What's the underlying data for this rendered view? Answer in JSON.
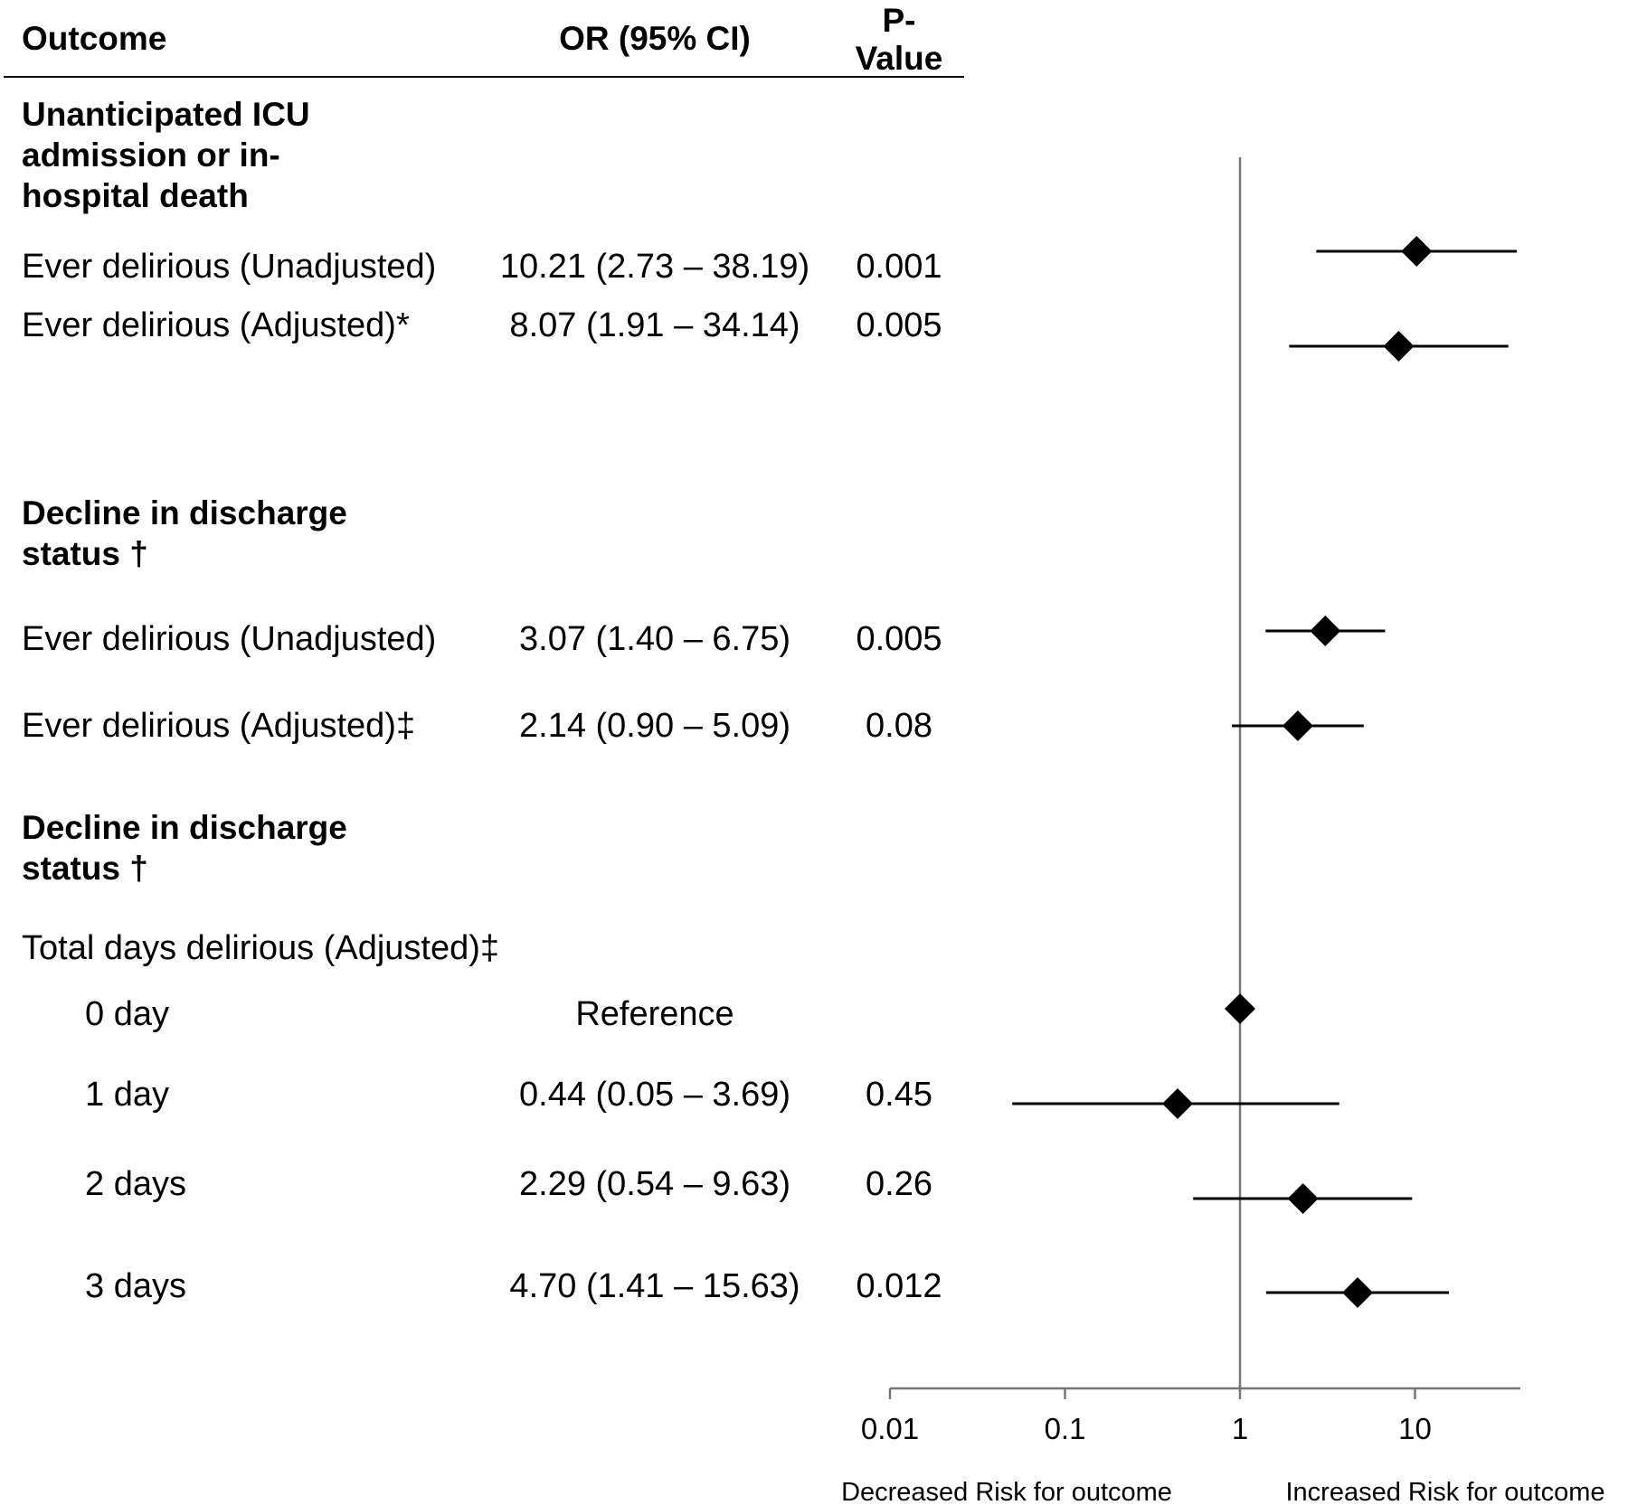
{
  "header": {
    "outcome": "Outcome",
    "or": "OR (95% CI)",
    "p_line1": "P-",
    "p_line2": "Value"
  },
  "groups": [
    {
      "title": "Unanticipated ICU admission or in-hospital death"
    },
    {
      "title": "Decline in discharge status †"
    },
    {
      "title": "Decline in discharge status †"
    }
  ],
  "subheading": "Total days delirious (Adjusted)‡",
  "rows": [
    {
      "label": "Ever delirious (Unadjusted)",
      "or_ci": "10.21 (2.73 – 38.19)",
      "p": "0.001"
    },
    {
      "label": "Ever delirious (Adjusted)*",
      "or_ci": "8.07 (1.91 – 34.14)",
      "p": "0.005"
    },
    {
      "label": "Ever delirious (Unadjusted)",
      "or_ci": "3.07 (1.40 – 6.75)",
      "p": "0.005"
    },
    {
      "label": "Ever delirious (Adjusted)‡",
      "or_ci": "2.14 (0.90 – 5.09)",
      "p": "0.08"
    },
    {
      "label": "0 day",
      "or_ci": "Reference",
      "p": ""
    },
    {
      "label": "1 day",
      "or_ci": "0.44 (0.05 – 3.69)",
      "p": "0.45"
    },
    {
      "label": "2 days",
      "or_ci": "2.29 (0.54 – 9.63)",
      "p": "0.26"
    },
    {
      "label": "3 days",
      "or_ci": "4.70 (1.41 – 15.63)",
      "p": "0.012"
    }
  ],
  "chart_data": {
    "type": "scatter",
    "x_scale": "log",
    "xlim": [
      0.01,
      40
    ],
    "reference_line": 1,
    "x_ticks": [
      "0.01",
      "0.1",
      "1",
      "10"
    ],
    "x_tick_values": [
      0.01,
      0.1,
      1,
      10
    ],
    "left_caption": "Decreased Risk for outcome",
    "right_caption": "Increased Risk for outcome",
    "points": [
      {
        "or": 10.21,
        "lo": 2.73,
        "hi": 38.19
      },
      {
        "or": 8.07,
        "lo": 1.91,
        "hi": 34.14
      },
      {
        "or": 3.07,
        "lo": 1.4,
        "hi": 6.75
      },
      {
        "or": 2.14,
        "lo": 0.9,
        "hi": 5.09
      },
      {
        "or": 1,
        "lo": 1,
        "hi": 1
      },
      {
        "or": 0.44,
        "lo": 0.05,
        "hi": 3.69
      },
      {
        "or": 2.29,
        "lo": 0.54,
        "hi": 9.63
      },
      {
        "or": 4.7,
        "lo": 1.41,
        "hi": 15.63
      }
    ]
  }
}
